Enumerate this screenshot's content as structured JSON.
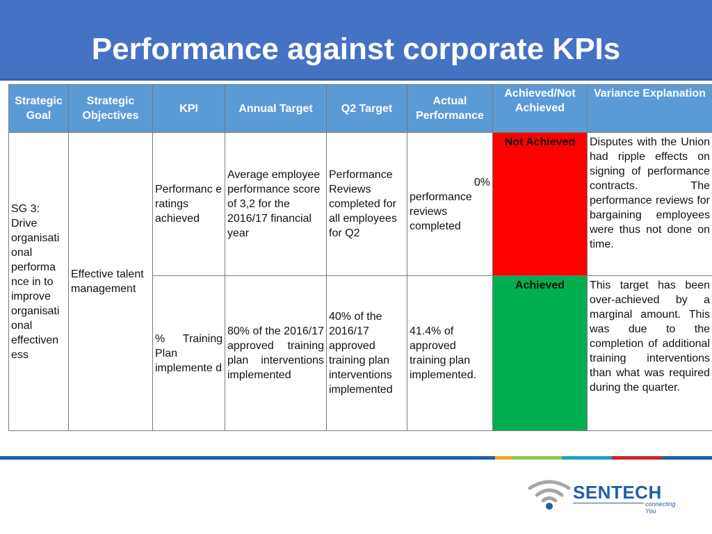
{
  "slide": {
    "title": "Performance against corporate KPIs"
  },
  "table": {
    "headers": {
      "goal": "Strategic Goal",
      "objectives": "Strategic Objectives",
      "kpi": "KPI",
      "annual_target": "Annual Target",
      "q2_target": "Q2 Target",
      "actual": "Actual Performance",
      "achieved": "Achieved/Not Achieved",
      "variance": "Variance Explanation"
    },
    "goal": "SG 3: Drive organisati onal performa nce in to improve organisati onal effectiven ess",
    "objective": "Effective talent management",
    "rows": [
      {
        "kpi": "Performanc e ratings achieved",
        "annual_target": "Average employee performance score of 3,2 for the 2016/17 financial year",
        "q2_target": "Performance Reviews completed for all employees for Q2",
        "actual_value": "0%",
        "actual_text": "performance reviews completed",
        "status": "Not Achieved",
        "variance": "Disputes with the Union had ripple effects on signing of performance contracts. The performance reviews for bargaining employees were thus not done on time."
      },
      {
        "kpi": "% Training Plan implemente d",
        "annual_target": "80% of the 2016/17 approved training plan interventions implemented",
        "q2_target": "40% of the 2016/17 approved training plan interventions implemented",
        "actual_text": "41.4% of approved training plan implemented.",
        "status": "Achieved",
        "variance": "This target has been over-achieved by a marginal amount. This was due to the completion of additional training interventions than what was required during the quarter."
      }
    ]
  },
  "footer": {
    "stripe_colors": [
      "#1f5fa8",
      "#f5a623",
      "#8cc63f",
      "#1aa0c8",
      "#cc2229",
      "#1f5fa8"
    ]
  },
  "logo": {
    "wordmark": "SENTECH",
    "tagline": "connecting You",
    "colors": {
      "arcs": "#a6a6a6",
      "dot": "#1f5fa8",
      "text": "#1f5fa8"
    }
  },
  "colors": {
    "title_bar": "#4472c4",
    "header_fill": "#5b9bd5",
    "not_achieved": "#ff0000",
    "achieved": "#00b050"
  }
}
